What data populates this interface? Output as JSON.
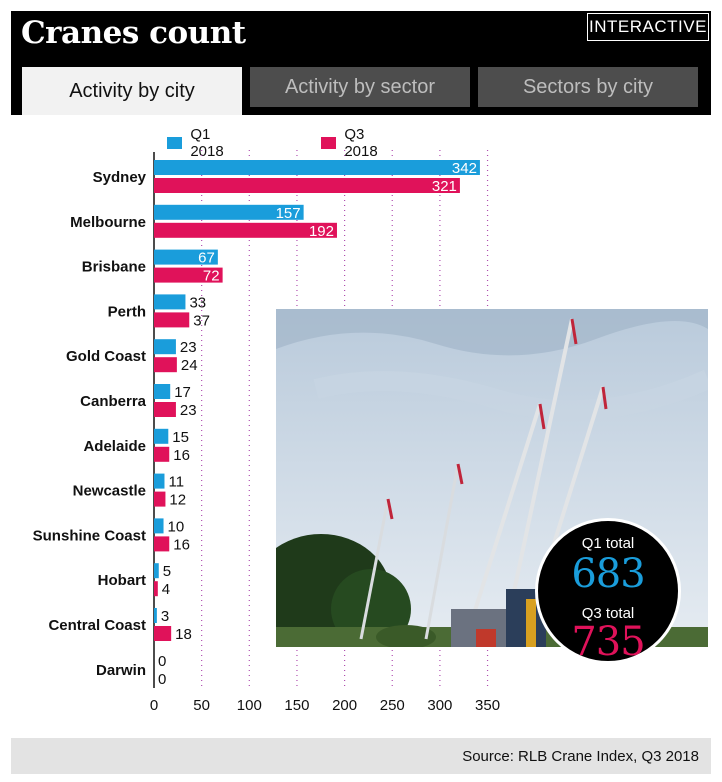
{
  "header": {
    "title": "Cranes count",
    "badge": "INTERACTIVE",
    "tabs": [
      {
        "label": "Activity by city",
        "active": true
      },
      {
        "label": "Activity by sector",
        "active": false
      },
      {
        "label": "Sectors by city",
        "active": false
      }
    ]
  },
  "chart_data": {
    "type": "bar",
    "orientation": "horizontal",
    "categories": [
      "Sydney",
      "Melbourne",
      "Brisbane",
      "Perth",
      "Gold Coast",
      "Canberra",
      "Adelaide",
      "Newcastle",
      "Sunshine Coast",
      "Hobart",
      "Central Coast",
      "Darwin"
    ],
    "series": [
      {
        "name": "Q1 2018",
        "color": "#1a9ddb",
        "values": [
          342,
          157,
          67,
          33,
          23,
          17,
          15,
          11,
          10,
          5,
          3,
          0
        ]
      },
      {
        "name": "Q3 2018",
        "color": "#e0125a",
        "values": [
          321,
          192,
          72,
          37,
          24,
          23,
          16,
          12,
          16,
          4,
          18,
          0
        ]
      }
    ],
    "xlim": [
      0,
      350
    ],
    "xticks": [
      0,
      50,
      100,
      150,
      200,
      250,
      300,
      350
    ],
    "grid": "vertical dotted",
    "legend": "top"
  },
  "totals": {
    "q1_label": "Q1 total",
    "q1_value": "683",
    "q3_label": "Q3 total",
    "q3_value": "735",
    "q1_color": "#1a9ddb",
    "q3_color": "#e0125a"
  },
  "footer": {
    "source": "Source: RLB Crane Index, Q3 2018"
  }
}
